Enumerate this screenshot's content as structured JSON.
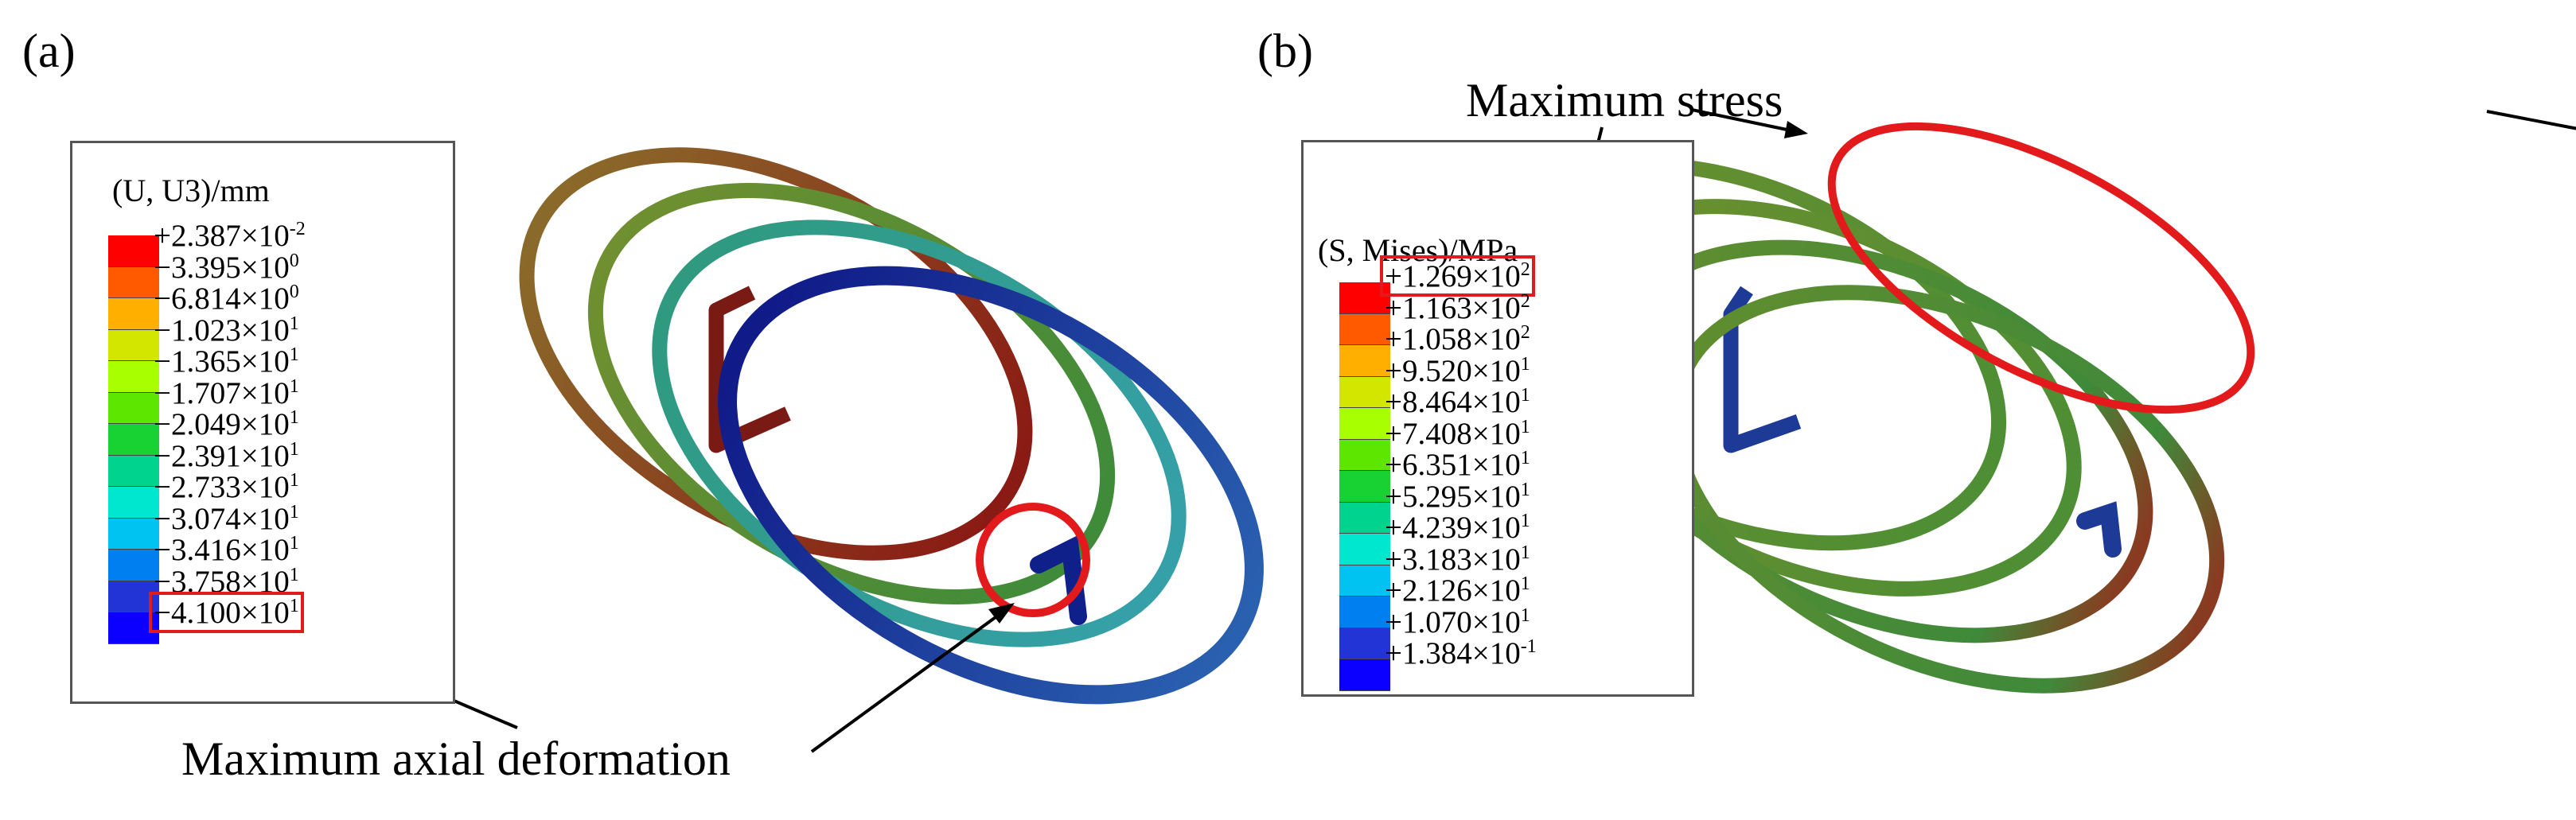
{
  "panels": [
    {
      "label": "(a)",
      "legend": {
        "title": "(U, U3)/mm",
        "colors": [
          "#ff0000",
          "#ff5a00",
          "#ffaf00",
          "#d2e600",
          "#a8ff00",
          "#5ce600",
          "#18d233",
          "#00d38e",
          "#00e7d0",
          "#00c3f2",
          "#0080f0",
          "#2334d6",
          "#0b00ff"
        ],
        "ticks": [
          {
            "m": "+2.387",
            "e": "-2"
          },
          {
            "m": "−3.395",
            "e": "0"
          },
          {
            "m": "−6.814",
            "e": "0"
          },
          {
            "m": "−1.023",
            "e": "1"
          },
          {
            "m": "−1.365",
            "e": "1"
          },
          {
            "m": "−1.707",
            "e": "1"
          },
          {
            "m": "−2.049",
            "e": "1"
          },
          {
            "m": "−2.391",
            "e": "1"
          },
          {
            "m": "−2.733",
            "e": "1"
          },
          {
            "m": "−3.074",
            "e": "1"
          },
          {
            "m": "−3.416",
            "e": "1"
          },
          {
            "m": "−3.758",
            "e": "1"
          },
          {
            "m": "−4.100",
            "e": "1"
          }
        ],
        "highlighted_tick": 12
      },
      "annotation": "Maximum axial deformation"
    },
    {
      "label": "(b)",
      "legend": {
        "title": "(S, Mises)/MPa",
        "colors": [
          "#ff0000",
          "#ff5a00",
          "#ffaf00",
          "#d2e600",
          "#a8ff00",
          "#5ce600",
          "#18d233",
          "#00d38e",
          "#00e7d0",
          "#00c3f2",
          "#0080f0",
          "#2334d6",
          "#0b00ff"
        ],
        "ticks": [
          {
            "m": "+1.269",
            "e": "2"
          },
          {
            "m": "+1.163",
            "e": "2"
          },
          {
            "m": "+1.058",
            "e": "2"
          },
          {
            "m": "+9.520",
            "e": "1"
          },
          {
            "m": "+8.464",
            "e": "1"
          },
          {
            "m": "+7.408",
            "e": "1"
          },
          {
            "m": "+6.351",
            "e": "1"
          },
          {
            "m": "+5.295",
            "e": "1"
          },
          {
            "m": "+4.239",
            "e": "1"
          },
          {
            "m": "+3.183",
            "e": "1"
          },
          {
            "m": "+2.126",
            "e": "1"
          },
          {
            "m": "+1.070",
            "e": "1"
          },
          {
            "m": "+1.384",
            "e": "-1"
          }
        ],
        "highlighted_tick": 0
      },
      "annotation": "Maximum stress"
    }
  ],
  "highlight_color": "#e31a1c"
}
